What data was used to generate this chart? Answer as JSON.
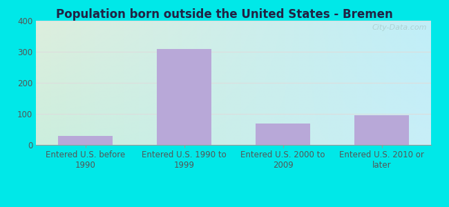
{
  "title": "Population born outside the United States - Bremen",
  "categories": [
    "Entered U.S. before\n1990",
    "Entered U.S. 1990 to\n1999",
    "Entered U.S. 2000 to\n2009",
    "Entered U.S. 2010 or\nlater"
  ],
  "values": [
    30,
    310,
    68,
    95
  ],
  "bar_color": "#b8a8d8",
  "ylim": [
    0,
    400
  ],
  "yticks": [
    0,
    100,
    200,
    300,
    400
  ],
  "background_outer": "#00e8e8",
  "background_inner_topleft": "#ddeedd",
  "background_inner_right": "#c8eef8",
  "grid_color": "#dddddd",
  "title_fontsize": 12,
  "tick_fontsize": 8.5,
  "watermark": "City-Data.com"
}
